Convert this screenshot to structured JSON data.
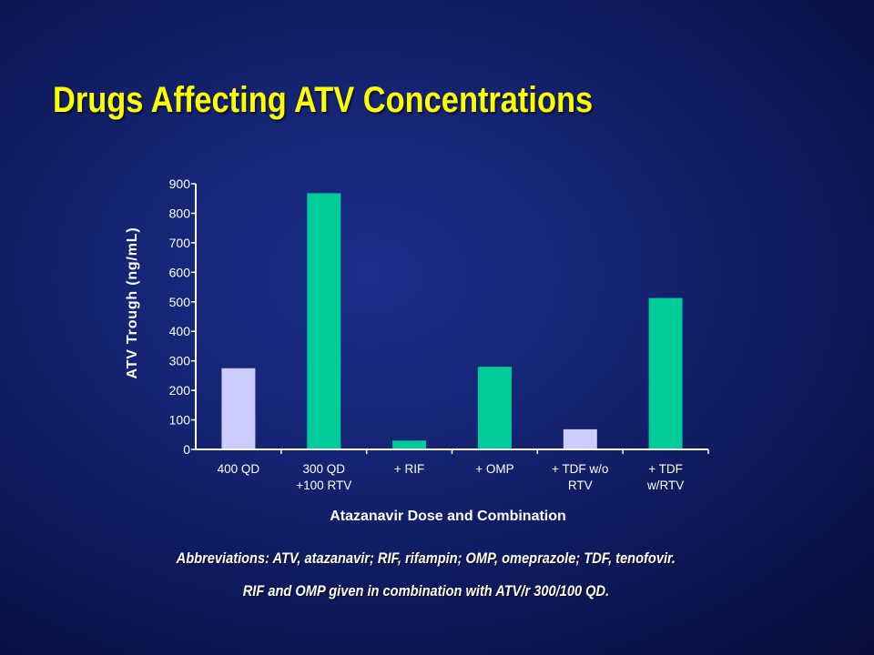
{
  "slide": {
    "title": "Drugs Affecting ATV Concentrations",
    "footnote_1": "Abbreviations: ATV, atazanavir; RIF, rifampin; OMP, omeprazole; TDF, tenofovir.",
    "footnote_2": "RIF and OMP given in combination with ATV/r 300/100 QD."
  },
  "colors": {
    "background": "#0f1c5e",
    "title": "#ffff00",
    "axis_text": "#ffffff",
    "bar_no_rtv": "#ccccff",
    "bar_with_rtv": "#00cc99"
  },
  "chart_data": {
    "type": "bar",
    "categories": [
      "400 QD",
      "300 QD +100 RTV",
      "+ RIF",
      "+ OMP",
      "+ TDF w/o RTV",
      "+ TDF w/RTV"
    ],
    "category_lines": [
      [
        "400 QD"
      ],
      [
        "300 QD",
        "+100 RTV"
      ],
      [
        "+ RIF"
      ],
      [
        "+ OMP"
      ],
      [
        "+ TDF w/o",
        "RTV"
      ],
      [
        "+ TDF",
        "w/RTV"
      ]
    ],
    "values": [
      275,
      868,
      30,
      280,
      68,
      513
    ],
    "bar_colors": [
      "#ccccff",
      "#00cc99",
      "#00cc99",
      "#00cc99",
      "#ccccff",
      "#00cc99"
    ],
    "title": "",
    "xlabel": "Atazanavir Dose and Combination",
    "ylabel": "ATV Trough (ng/mL)",
    "ylim": [
      0,
      900
    ],
    "yticks": [
      0,
      100,
      200,
      300,
      400,
      500,
      600,
      700,
      800,
      900
    ],
    "grid": false,
    "legend": "none"
  }
}
